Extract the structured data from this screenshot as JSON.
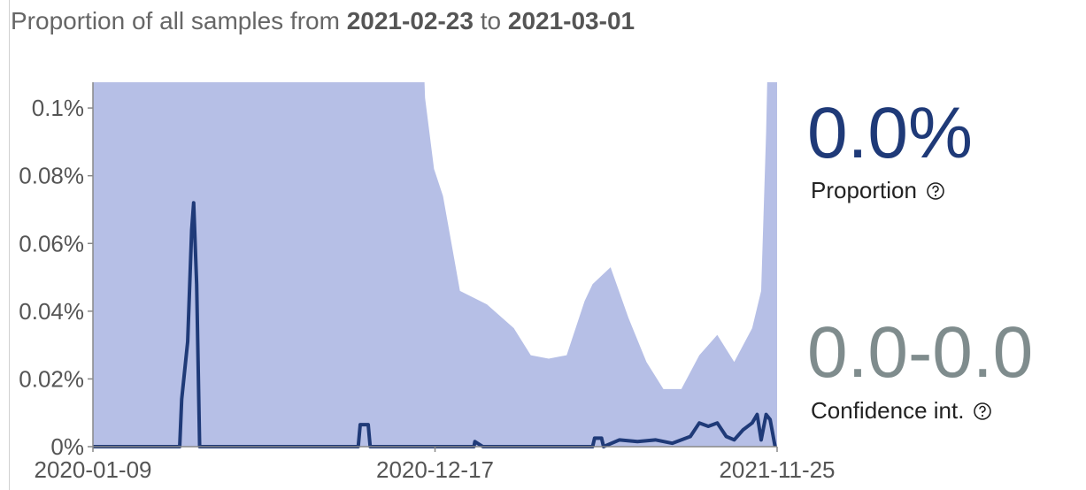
{
  "chart_data": {
    "type": "line",
    "title_prefix": "Proportion of all samples from",
    "date_from": "2021-02-23",
    "title_join": "to",
    "date_to": "2021-03-01",
    "proportion_value": "0.0%",
    "proportion_label": "Proportion",
    "ci_value": "0.0-0.0",
    "ci_label": "Confidence int.",
    "xlim": [
      "2020-01-09",
      "2021-11-25"
    ],
    "xticks": [
      "2020-01-09",
      "2020-12-17",
      "2021-11-25"
    ],
    "ylim": [
      0,
      0.1076
    ],
    "yticks": [
      {
        "value": 0,
        "label": "0%"
      },
      {
        "value": 0.02,
        "label": "0.02%"
      },
      {
        "value": 0.04,
        "label": "0.04%"
      },
      {
        "value": 0.06,
        "label": "0.06%"
      },
      {
        "value": 0.08,
        "label": "0.08%"
      },
      {
        "value": 0.1,
        "label": "0.1%"
      }
    ],
    "band": {
      "color": "#b6bfe6",
      "x": [
        "2020-01-09",
        "2020-12-05",
        "2020-12-07",
        "2020-12-16",
        "2020-12-25",
        "2021-01-11",
        "2021-02-07",
        "2021-03-06",
        "2021-03-23",
        "2021-04-10",
        "2021-04-28",
        "2021-05-16",
        "2021-05-24",
        "2021-06-11",
        "2021-06-29",
        "2021-07-17",
        "2021-08-03",
        "2021-08-21",
        "2021-09-08",
        "2021-09-26",
        "2021-10-13",
        "2021-10-31",
        "2021-11-09",
        "2021-11-14",
        "2021-11-16",
        "2021-11-25"
      ],
      "upper": [
        0.12,
        0.12,
        0.103,
        0.082,
        0.074,
        0.046,
        0.042,
        0.035,
        0.027,
        0.026,
        0.027,
        0.043,
        0.048,
        0.053,
        0.038,
        0.025,
        0.017,
        0.017,
        0.027,
        0.033,
        0.025,
        0.035,
        0.046,
        0.093,
        0.12,
        0.12
      ]
    },
    "series": [
      {
        "color": "#1f3a78",
        "x": [
          "2020-01-09",
          "2020-04-05",
          "2020-04-07",
          "2020-04-13",
          "2020-04-17",
          "2020-04-19",
          "2020-04-22",
          "2020-04-25",
          "2020-10-01",
          "2020-10-03",
          "2020-10-11",
          "2020-10-13",
          "2021-01-25",
          "2021-01-26",
          "2021-02-03",
          "2021-05-24",
          "2021-05-26",
          "2021-06-02",
          "2021-06-04",
          "2021-06-20",
          "2021-07-08",
          "2021-07-26",
          "2021-08-12",
          "2021-08-30",
          "2021-09-08",
          "2021-09-17",
          "2021-09-26",
          "2021-10-05",
          "2021-10-13",
          "2021-10-22",
          "2021-10-31",
          "2021-11-05",
          "2021-11-09",
          "2021-11-14",
          "2021-11-18",
          "2021-11-23"
        ],
        "values": [
          0,
          0,
          0.014,
          0.031,
          0.064,
          0.072,
          0.048,
          0,
          0,
          0.0065,
          0.0065,
          0,
          0,
          0.0015,
          0,
          0,
          0.0025,
          0.0025,
          0,
          0.002,
          0.0015,
          0.002,
          0.001,
          0.003,
          0.007,
          0.006,
          0.007,
          0.003,
          0.002,
          0.005,
          0.007,
          0.0095,
          0.002,
          0.0095,
          0.008,
          0
        ]
      }
    ]
  }
}
